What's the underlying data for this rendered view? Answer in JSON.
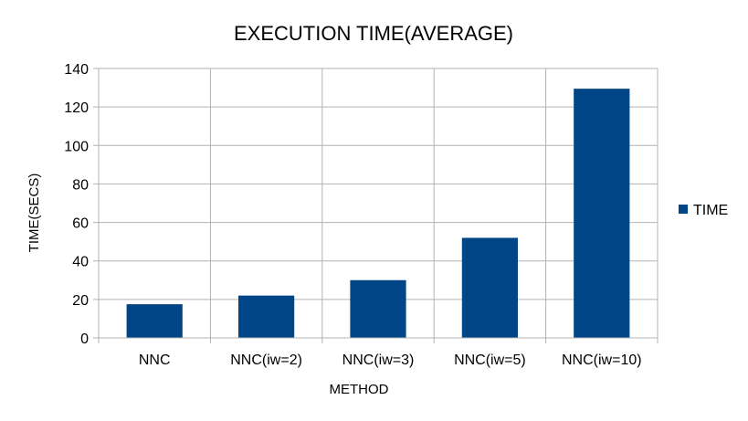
{
  "chart_data": {
    "type": "bar",
    "title": "EXECUTION TIME(AVERAGE)",
    "xlabel": "METHOD",
    "ylabel": "TIME(SECS)",
    "categories": [
      "NNC",
      "NNC(iw=2)",
      "NNC(iw=3)",
      "NNC(iw=5)",
      "NNC(iw=10)"
    ],
    "series": [
      {
        "name": "TIME",
        "values": [
          17.5,
          22,
          30,
          52,
          129.5
        ],
        "color": "#004586"
      }
    ],
    "ylim": [
      0,
      140
    ],
    "yticks": [
      0,
      20,
      40,
      60,
      80,
      100,
      120,
      140
    ],
    "ytick_labels": [
      "0",
      "20",
      "40",
      "60",
      "80",
      "100",
      "120",
      "140"
    ],
    "grid": true,
    "legend_position": "right"
  }
}
